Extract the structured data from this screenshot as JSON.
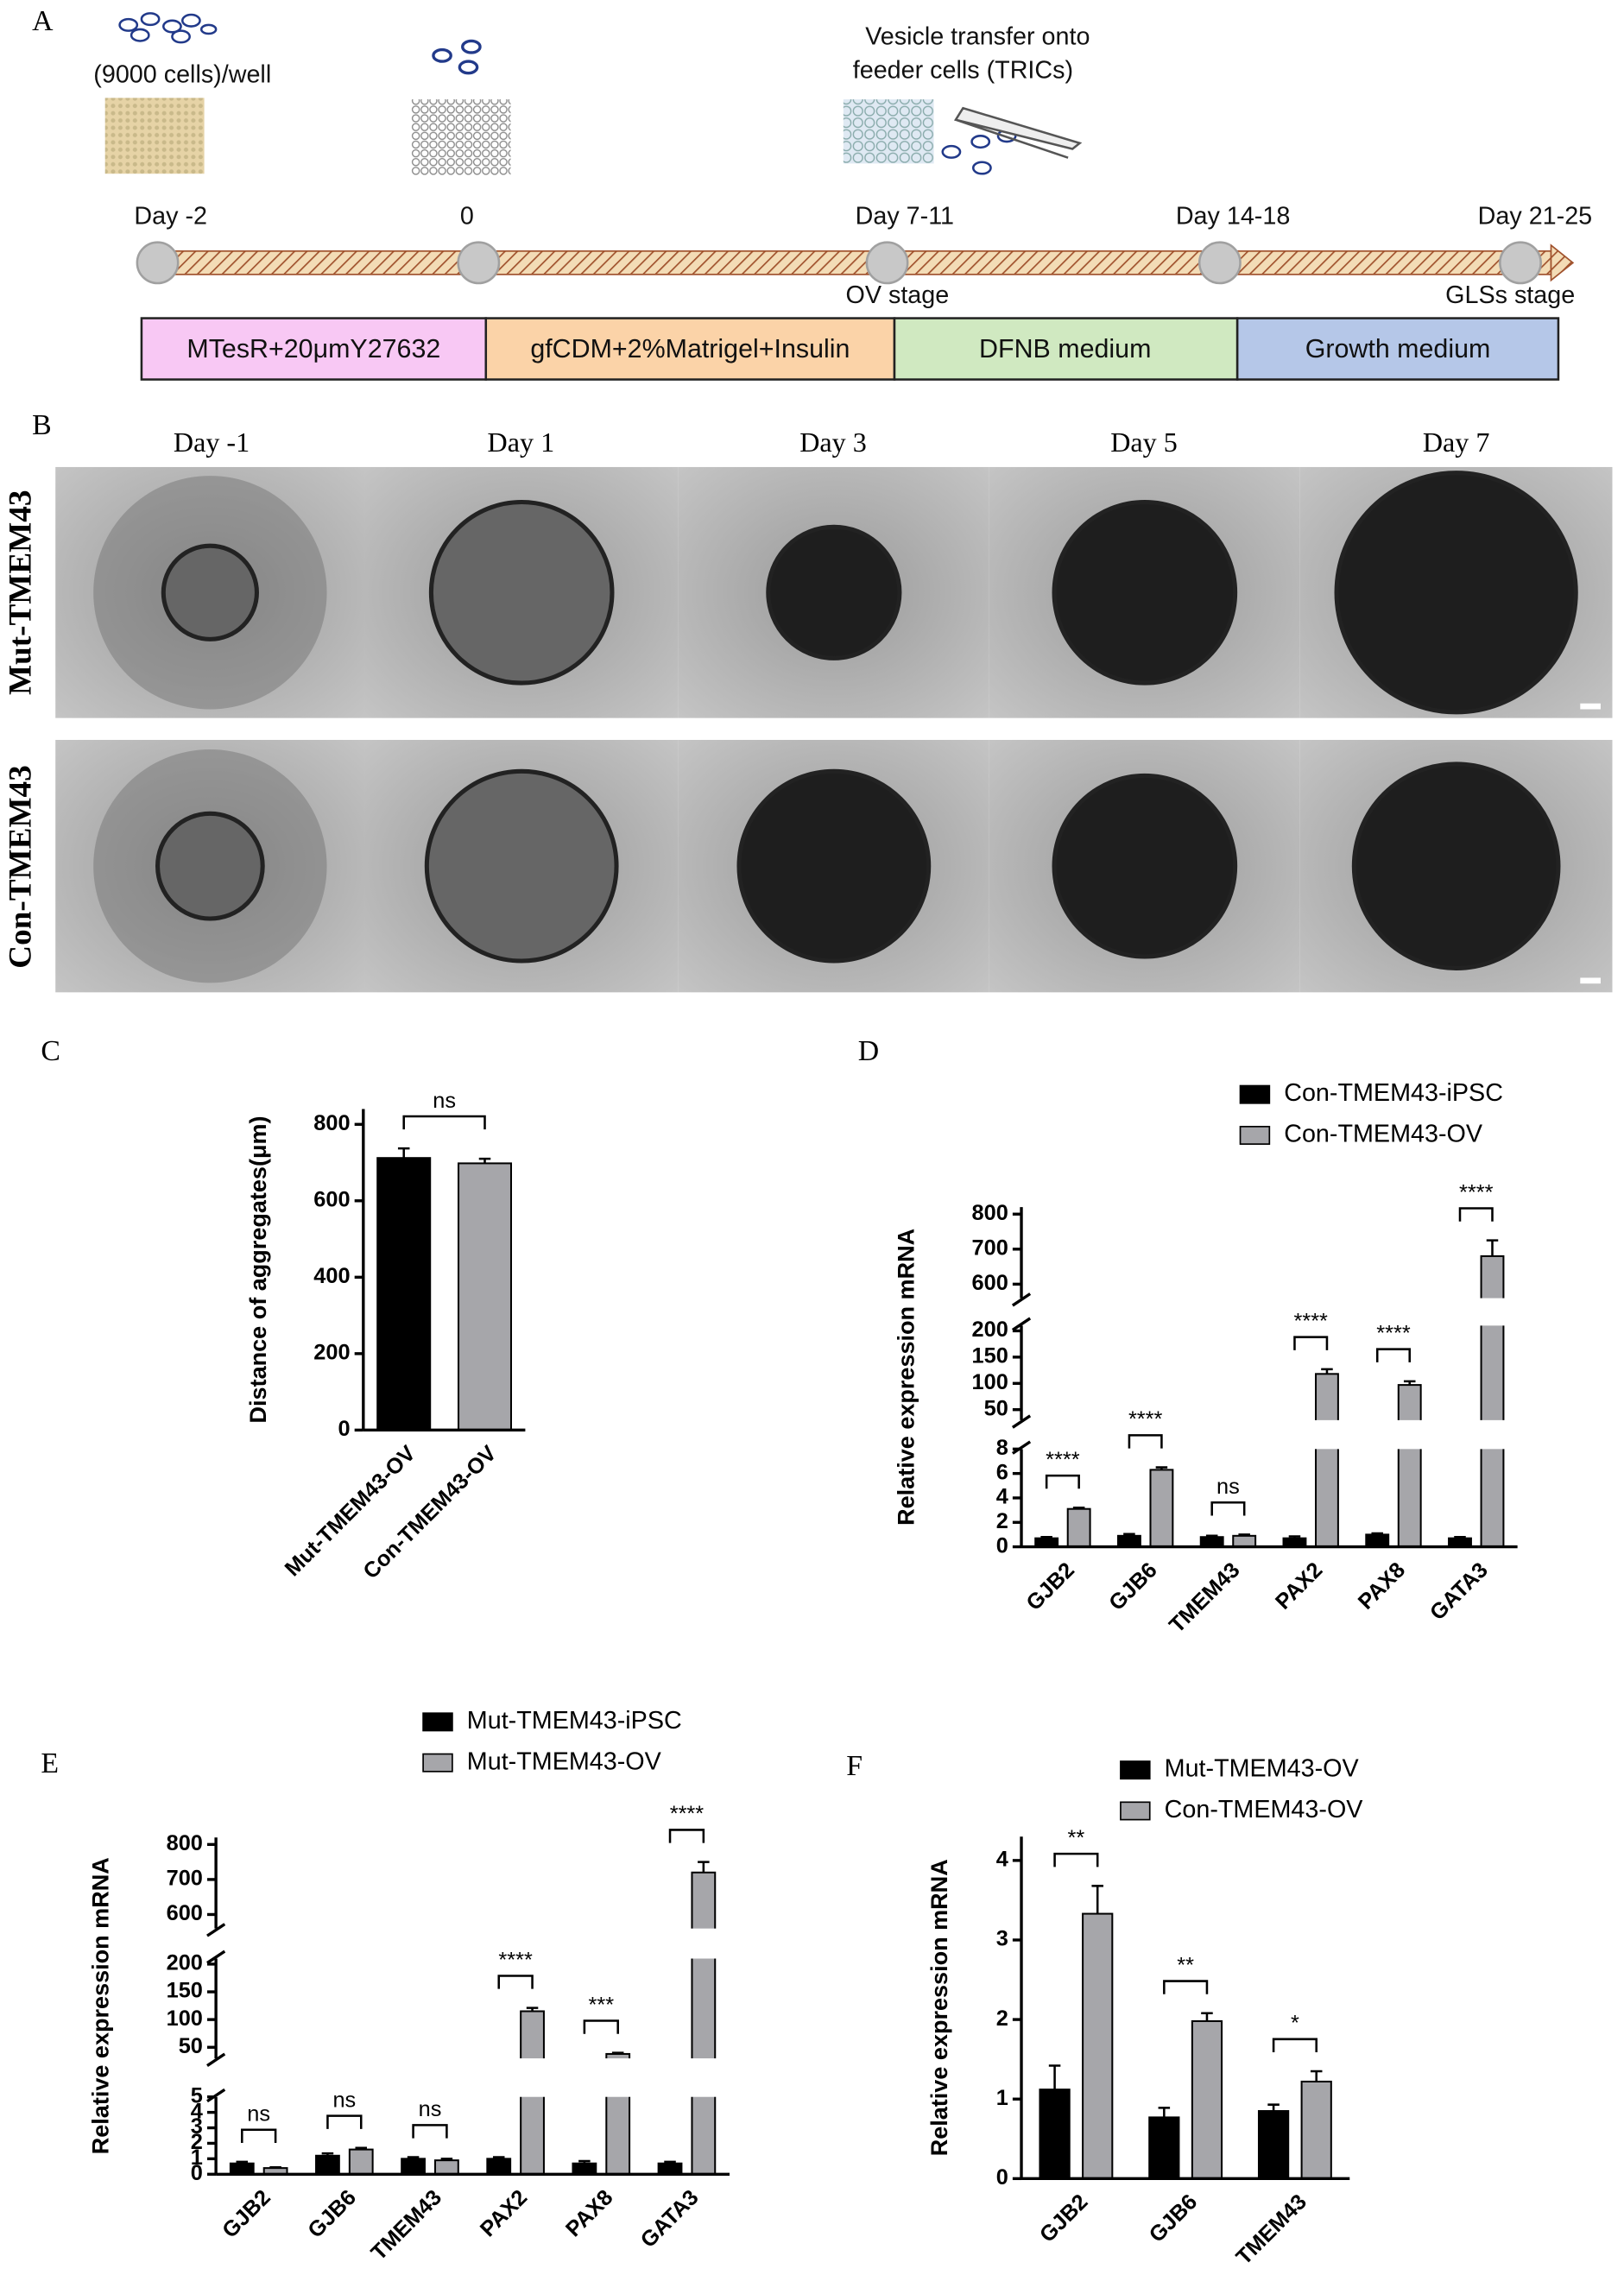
{
  "panel_a": {
    "label": "A",
    "seeding": "(9000 cells)/well",
    "transfer": [
      "Vesicle transfer onto",
      "feeder cells (TRICs)"
    ],
    "timepoints": [
      "Day -2",
      "0",
      "Day 7-11",
      "Day 14-18",
      "Day 21-25"
    ],
    "stages": [
      "OV stage",
      "GLSs stage"
    ],
    "media": [
      "MTesR+20μmY27632",
      "gfCDM+2%Matrigel+Insulin",
      "DFNB medium",
      "Growth medium"
    ]
  },
  "panel_b": {
    "label": "B",
    "columns": [
      "Day -1",
      "Day 1",
      "Day 3",
      "Day 5",
      "Day 7"
    ],
    "rows": [
      "Mut-TMEM43",
      "Con-TMEM43"
    ]
  },
  "chart_data": [
    {
      "type": "bar",
      "label": "C",
      "y_label": "Distance of aggregates(μm)",
      "categories": [
        "Mut-TMEM43-OV",
        "Con-TMEM43-OV"
      ],
      "values": [
        712,
        698
      ],
      "errors": [
        25,
        12
      ],
      "colors": [
        "#000000",
        "#a6a6aa"
      ],
      "ylim": [
        0,
        840
      ],
      "yticks": [
        0,
        200,
        400,
        600,
        800
      ],
      "annotations": [
        "ns"
      ]
    },
    {
      "type": "bar",
      "label": "D",
      "y_label": "Relative expression  mRNA",
      "categories": [
        "GJB2",
        "GJB6",
        "TMEM43",
        "PAX2",
        "PAX8",
        "GATA3"
      ],
      "series": [
        {
          "name": "Con-TMEM43-iPSC",
          "color": "#000000",
          "values": [
            0.7,
            0.9,
            0.8,
            0.7,
            1.0,
            0.7
          ],
          "errors": [
            0.1,
            0.15,
            0.1,
            0.15,
            0.1,
            0.1
          ]
        },
        {
          "name": "Con-TMEM43-OV",
          "color": "#a6a6aa",
          "values": [
            3.1,
            6.3,
            0.9,
            118,
            97,
            680
          ],
          "errors": [
            0.1,
            0.2,
            0.1,
            9,
            7,
            45
          ]
        }
      ],
      "ylim": [
        0,
        820
      ],
      "ylim_segments": [
        [
          0,
          8
        ],
        [
          30,
          210
        ],
        [
          560,
          820
        ]
      ],
      "yticks": [
        0,
        2,
        4,
        6,
        8,
        50,
        100,
        150,
        200,
        600,
        700,
        800
      ],
      "annotations": [
        "****",
        "****",
        "ns",
        "****",
        "****",
        "****"
      ]
    },
    {
      "type": "bar",
      "label": "E",
      "y_label": "Relative expression  mRNA",
      "categories": [
        "GJB2",
        "GJB6",
        "TMEM43",
        "PAX2",
        "PAX8",
        "GATA3"
      ],
      "series": [
        {
          "name": "Mut-TMEM43-iPSC",
          "color": "#000000",
          "values": [
            0.7,
            1.2,
            1.0,
            1.0,
            0.7,
            0.7
          ],
          "errors": [
            0.1,
            0.15,
            0.1,
            0.1,
            0.15,
            0.1
          ]
        },
        {
          "name": "Mut-TMEM43-OV",
          "color": "#a6a6aa",
          "values": [
            0.4,
            1.6,
            0.9,
            115,
            38,
            720
          ],
          "errors": [
            0.05,
            0.1,
            0.1,
            6,
            2,
            30
          ]
        }
      ],
      "ylim": [
        0,
        820
      ],
      "ylim_segments": [
        [
          0,
          5
        ],
        [
          30,
          210
        ],
        [
          560,
          820
        ]
      ],
      "yticks": [
        0,
        1,
        2,
        3,
        4,
        5,
        50,
        100,
        150,
        200,
        600,
        700,
        800
      ],
      "annotations": [
        "ns",
        "ns",
        "ns",
        "****",
        "***",
        "****"
      ]
    },
    {
      "type": "bar",
      "label": "F",
      "y_label": "Relative expression  mRNA",
      "categories": [
        "GJB2",
        "GJB6",
        "TMEM43"
      ],
      "series": [
        {
          "name": "Mut-TMEM43-OV",
          "color": "#000000",
          "values": [
            1.12,
            0.77,
            0.85
          ],
          "errors": [
            0.3,
            0.12,
            0.08
          ]
        },
        {
          "name": "Con-TMEM43-OV",
          "color": "#a6a6aa",
          "values": [
            3.33,
            1.98,
            1.22
          ],
          "errors": [
            0.35,
            0.1,
            0.13
          ]
        }
      ],
      "ylim": [
        0,
        4.3
      ],
      "yticks": [
        0,
        1,
        2,
        3,
        4
      ],
      "annotations": [
        "**",
        "**",
        "*"
      ]
    }
  ]
}
